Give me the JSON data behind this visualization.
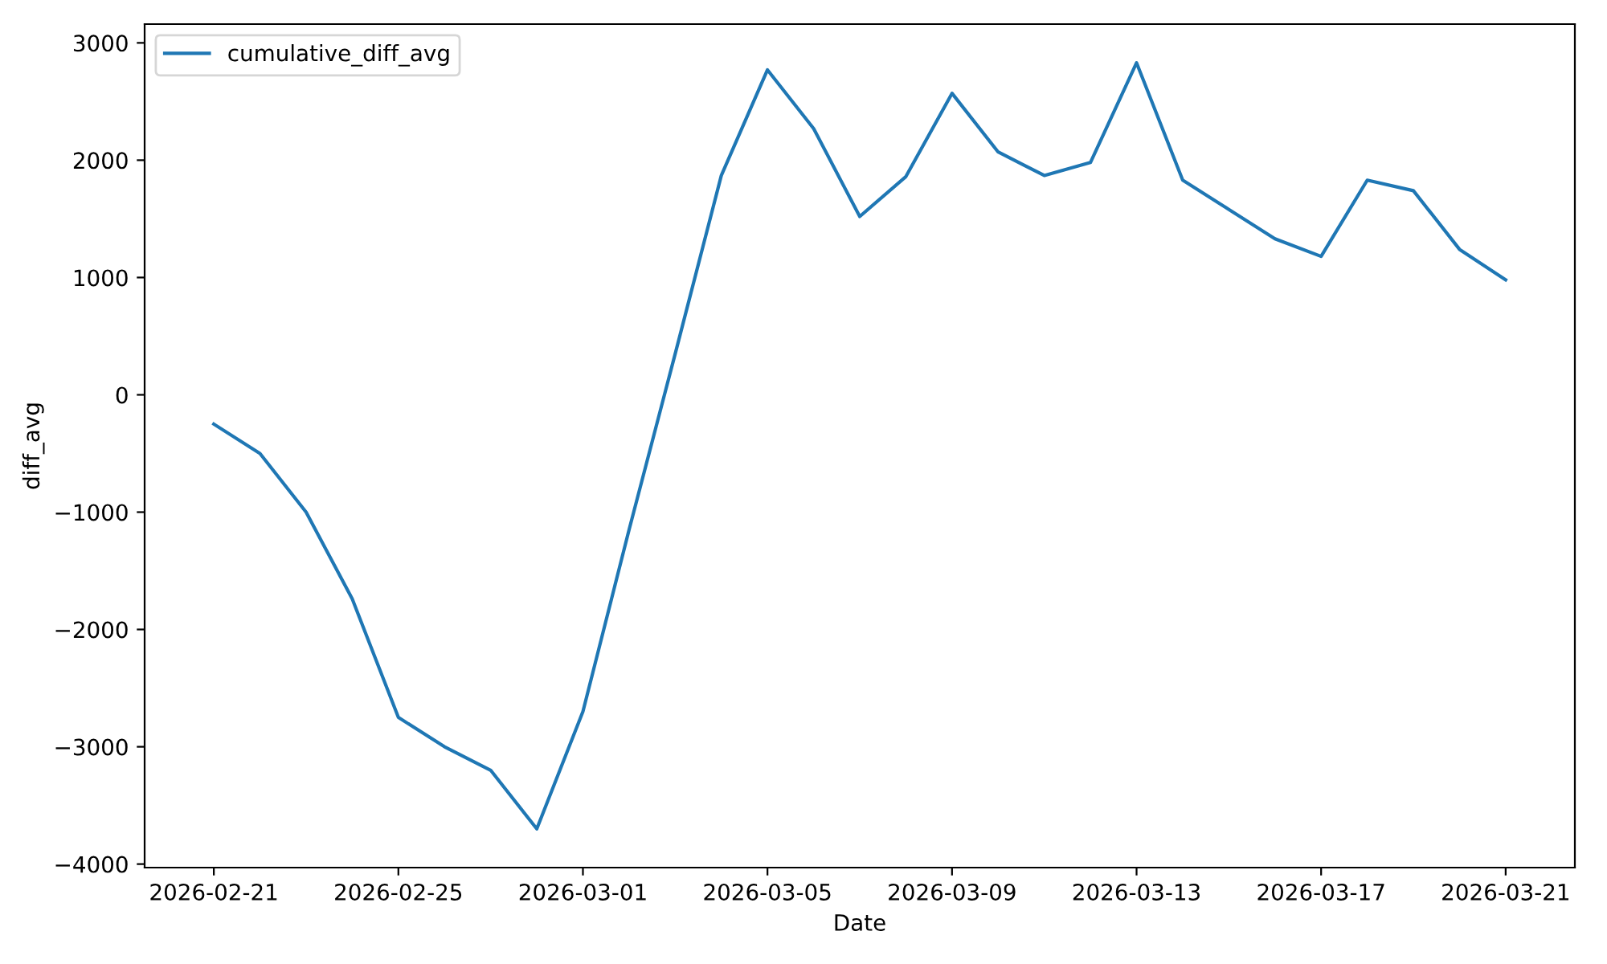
{
  "chart_data": {
    "type": "line",
    "xlabel": "Date",
    "ylabel": "diff_avg",
    "x": [
      "2026-02-21",
      "2026-02-22",
      "2026-02-23",
      "2026-02-24",
      "2026-02-25",
      "2026-02-26",
      "2026-02-27",
      "2026-02-28",
      "2026-03-01",
      "2026-03-02",
      "2026-03-03",
      "2026-03-04",
      "2026-03-05",
      "2026-03-06",
      "2026-03-07",
      "2026-03-08",
      "2026-03-09",
      "2026-03-10",
      "2026-03-11",
      "2026-03-12",
      "2026-03-13",
      "2026-03-14",
      "2026-03-15",
      "2026-03-16",
      "2026-03-17",
      "2026-03-18",
      "2026-03-19",
      "2026-03-20",
      "2026-03-21"
    ],
    "series": [
      {
        "name": "cumulative_diff_avg",
        "color": "#1f77b4",
        "values": [
          -250,
          -500,
          -1000,
          -1740,
          -2750,
          -3000,
          -3200,
          -3700,
          -2700,
          -1150,
          350,
          1870,
          2770,
          2270,
          1520,
          1860,
          2570,
          2070,
          1870,
          1980,
          2830,
          1830,
          1580,
          1330,
          1180,
          1830,
          1740,
          1240,
          980
        ]
      }
    ],
    "xlim": [
      "2026-02-19T12:00",
      "2026-03-22T12:00"
    ],
    "xticks": [
      "2026-02-21",
      "2026-02-25",
      "2026-03-01",
      "2026-03-05",
      "2026-03-09",
      "2026-03-13",
      "2026-03-17",
      "2026-03-21"
    ],
    "ylim": [
      -4030,
      3160
    ],
    "yticks": [
      {
        "value": -4000,
        "label": "−4000"
      },
      {
        "value": -3000,
        "label": "−3000"
      },
      {
        "value": -2000,
        "label": "−2000"
      },
      {
        "value": -1000,
        "label": "−1000"
      },
      0,
      1000,
      2000,
      3000
    ],
    "legend": "upper left",
    "grid": false,
    "marker": "none",
    "line_style": "solid"
  }
}
